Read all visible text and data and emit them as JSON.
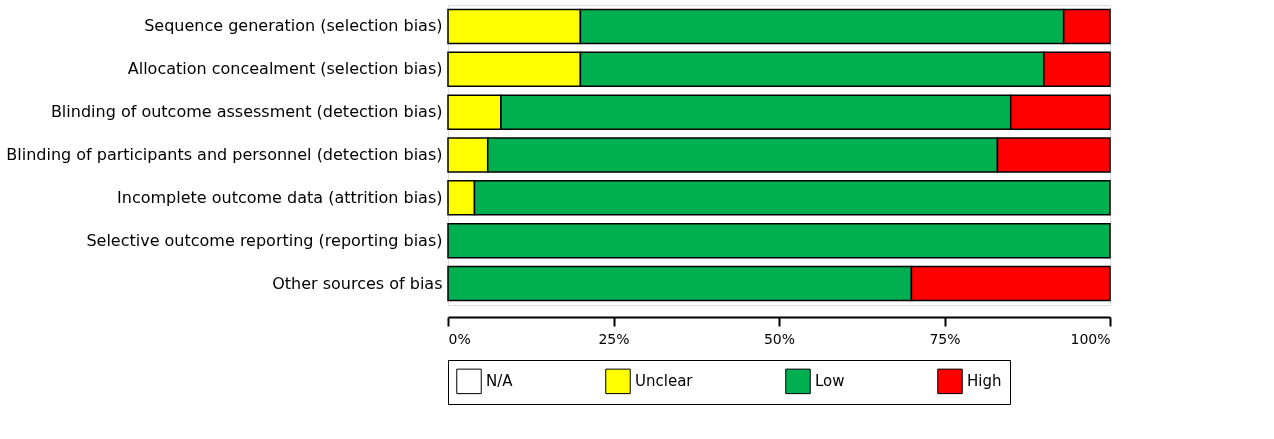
{
  "chart_data": {
    "type": "bar",
    "orientation": "horizontal",
    "stacked": true,
    "categories": [
      "Sequence generation (selection bias)",
      "Allocation concealment (selection bias)",
      "Blinding of outcome assessment (detection bias)",
      "Blinding of participants and personnel (detection bias)",
      "Incomplete outcome data (attrition bias)",
      "Selective outcome reporting (reporting bias)",
      "Other sources of bias"
    ],
    "series": [
      {
        "name": "N/A",
        "color": "#ffffff",
        "values": [
          0,
          0,
          0,
          0,
          0,
          0,
          0
        ]
      },
      {
        "name": "Unclear",
        "color": "#ffff00",
        "values": [
          20,
          20,
          8,
          6,
          4,
          0,
          0
        ]
      },
      {
        "name": "Low",
        "color": "#00b050",
        "values": [
          73,
          70,
          77,
          77,
          96,
          100,
          70
        ]
      },
      {
        "name": "High",
        "color": "#ff0000",
        "values": [
          7,
          10,
          15,
          17,
          0,
          0,
          30
        ]
      }
    ],
    "xlim": [
      0,
      100
    ],
    "xticks": [
      {
        "value": 0,
        "label": "0%"
      },
      {
        "value": 25,
        "label": "25%"
      },
      {
        "value": 50,
        "label": "50%"
      },
      {
        "value": 75,
        "label": "75%"
      },
      {
        "value": 100,
        "label": "100%"
      }
    ],
    "grid": false,
    "legend": "bottom"
  }
}
